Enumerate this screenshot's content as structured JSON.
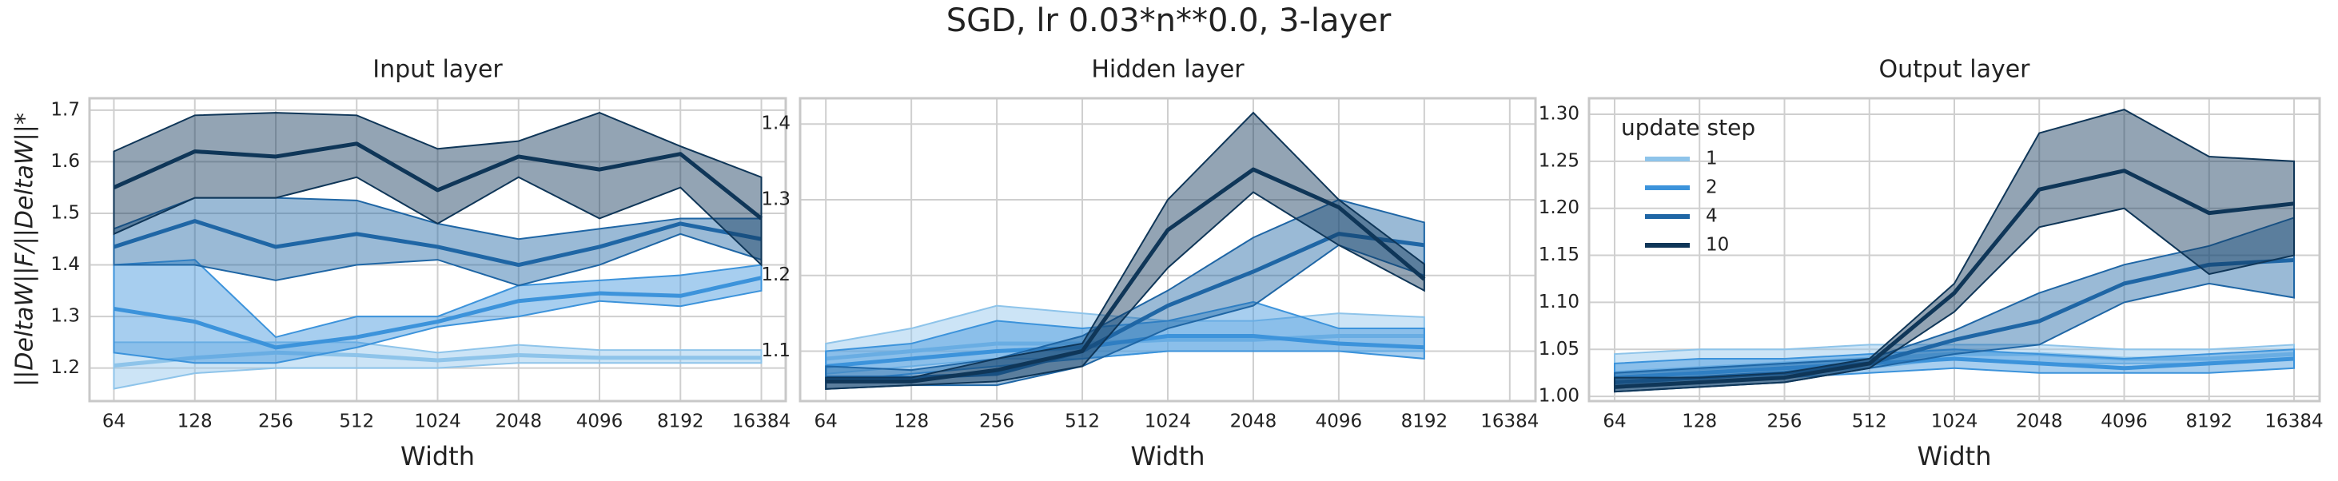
{
  "title": "SGD, lr 0.03*n**0.0, 3-layer",
  "chart_data": [
    {
      "type": "line",
      "title": "Input layer",
      "xlabel": "Width",
      "ylabel": "||DeltaW||F/||DeltaW||*",
      "categories": [
        "64",
        "128",
        "256",
        "512",
        "1024",
        "2048",
        "4096",
        "8192",
        "16384"
      ],
      "ylim": [
        1.136,
        1.723
      ],
      "yticks": [
        1.2,
        1.3,
        1.4,
        1.5,
        1.6,
        1.7
      ],
      "grid": true,
      "series": [
        {
          "name": "1",
          "color": "#8ec4ea",
          "values": [
            1.205,
            1.22,
            1.23,
            1.225,
            1.215,
            1.225,
            1.22,
            1.22,
            1.22
          ],
          "lower": [
            1.16,
            1.19,
            1.2,
            1.2,
            1.2,
            1.21,
            1.21,
            1.21,
            1.21
          ],
          "upper": [
            1.25,
            1.25,
            1.25,
            1.25,
            1.23,
            1.245,
            1.235,
            1.235,
            1.235
          ]
        },
        {
          "name": "2",
          "color": "#3c93db",
          "values": [
            1.315,
            1.29,
            1.24,
            1.26,
            1.29,
            1.33,
            1.345,
            1.34,
            1.375
          ],
          "lower": [
            1.23,
            1.21,
            1.21,
            1.24,
            1.28,
            1.3,
            1.33,
            1.32,
            1.35
          ],
          "upper": [
            1.4,
            1.41,
            1.26,
            1.3,
            1.3,
            1.36,
            1.37,
            1.38,
            1.4
          ]
        },
        {
          "name": "4",
          "color": "#1f66a5",
          "values": [
            1.435,
            1.485,
            1.435,
            1.46,
            1.435,
            1.4,
            1.435,
            1.48,
            1.45
          ],
          "lower": [
            1.4,
            1.4,
            1.37,
            1.4,
            1.41,
            1.36,
            1.4,
            1.46,
            1.41
          ],
          "upper": [
            1.47,
            1.53,
            1.53,
            1.525,
            1.48,
            1.45,
            1.47,
            1.49,
            1.49
          ]
        },
        {
          "name": "10",
          "color": "#0f3658",
          "values": [
            1.55,
            1.62,
            1.61,
            1.635,
            1.545,
            1.61,
            1.585,
            1.615,
            1.49
          ],
          "lower": [
            1.46,
            1.53,
            1.53,
            1.57,
            1.48,
            1.57,
            1.49,
            1.55,
            1.4
          ],
          "upper": [
            1.62,
            1.69,
            1.695,
            1.69,
            1.625,
            1.64,
            1.695,
            1.63,
            1.57
          ]
        }
      ]
    },
    {
      "type": "line",
      "title": "Hidden layer",
      "xlabel": "Width",
      "categories": [
        "64",
        "128",
        "256",
        "512",
        "1024",
        "2048",
        "4096",
        "8192",
        "16384"
      ],
      "ylim": [
        1.034,
        1.434
      ],
      "yticks": [
        1.1,
        1.2,
        1.3,
        1.4
      ],
      "grid": true,
      "series": [
        {
          "name": "1",
          "color": "#8ec4ea",
          "values": [
            1.09,
            1.1,
            1.11,
            1.11,
            1.115,
            1.115,
            1.12,
            1.12,
            null
          ],
          "lower": [
            1.07,
            1.08,
            1.09,
            1.09,
            1.1,
            1.1,
            1.1,
            1.1,
            null
          ],
          "upper": [
            1.11,
            1.13,
            1.16,
            1.15,
            1.14,
            1.14,
            1.15,
            1.145,
            null
          ]
        },
        {
          "name": "2",
          "color": "#3c93db",
          "values": [
            1.08,
            1.09,
            1.1,
            1.105,
            1.12,
            1.12,
            1.11,
            1.105,
            null
          ],
          "lower": [
            1.06,
            1.07,
            1.08,
            1.09,
            1.1,
            1.1,
            1.1,
            1.09,
            null
          ],
          "upper": [
            1.1,
            1.11,
            1.14,
            1.13,
            1.14,
            1.165,
            1.13,
            1.13,
            null
          ]
        },
        {
          "name": "4",
          "color": "#1f66a5",
          "values": [
            1.065,
            1.065,
            1.07,
            1.1,
            1.16,
            1.205,
            1.255,
            1.24,
            null
          ],
          "lower": [
            1.05,
            1.055,
            1.055,
            1.08,
            1.13,
            1.16,
            1.24,
            1.2,
            null
          ],
          "upper": [
            1.08,
            1.075,
            1.09,
            1.12,
            1.18,
            1.25,
            1.3,
            1.27,
            null
          ]
        },
        {
          "name": "10",
          "color": "#0f3658",
          "values": [
            1.06,
            1.06,
            1.075,
            1.1,
            1.26,
            1.34,
            1.29,
            1.195,
            null
          ],
          "lower": [
            1.05,
            1.055,
            1.06,
            1.08,
            1.21,
            1.31,
            1.24,
            1.18,
            null
          ],
          "upper": [
            1.065,
            1.065,
            1.09,
            1.11,
            1.3,
            1.415,
            1.3,
            1.215,
            null
          ]
        }
      ]
    },
    {
      "type": "line",
      "title": "Output layer",
      "xlabel": "Width",
      "categories": [
        "64",
        "128",
        "256",
        "512",
        "1024",
        "2048",
        "4096",
        "8192",
        "16384"
      ],
      "ylim": [
        0.995,
        1.317
      ],
      "yticks": [
        {
          "value": 1.0,
          "label": "1.00"
        },
        {
          "value": 1.05,
          "label": "1.05"
        },
        {
          "value": 1.1,
          "label": "1.10"
        },
        {
          "value": 1.15,
          "label": "1.15"
        },
        {
          "value": 1.2,
          "label": "1.20"
        },
        {
          "value": 1.25,
          "label": "1.25"
        },
        {
          "value": 1.3,
          "label": "1.30"
        }
      ],
      "grid": true,
      "legend": "upper left",
      "legend_title": "update step",
      "series": [
        {
          "name": "1",
          "color": "#8ec4ea",
          "values": [
            1.025,
            1.03,
            1.035,
            1.04,
            1.045,
            1.045,
            1.04,
            1.04,
            1.045
          ],
          "lower": [
            1.01,
            1.02,
            1.025,
            1.03,
            1.04,
            1.035,
            1.035,
            1.035,
            1.04
          ],
          "upper": [
            1.045,
            1.05,
            1.05,
            1.055,
            1.055,
            1.055,
            1.05,
            1.05,
            1.055
          ]
        },
        {
          "name": "2",
          "color": "#3c93db",
          "values": [
            1.02,
            1.025,
            1.03,
            1.035,
            1.04,
            1.035,
            1.03,
            1.035,
            1.04
          ],
          "lower": [
            1.01,
            1.015,
            1.02,
            1.025,
            1.03,
            1.025,
            1.025,
            1.025,
            1.03
          ],
          "upper": [
            1.035,
            1.04,
            1.04,
            1.045,
            1.05,
            1.045,
            1.04,
            1.045,
            1.05
          ]
        },
        {
          "name": "4",
          "color": "#1f66a5",
          "values": [
            1.015,
            1.02,
            1.025,
            1.035,
            1.06,
            1.08,
            1.12,
            1.14,
            1.145
          ],
          "lower": [
            1.005,
            1.01,
            1.015,
            1.03,
            1.045,
            1.055,
            1.1,
            1.12,
            1.105
          ],
          "upper": [
            1.025,
            1.03,
            1.035,
            1.04,
            1.07,
            1.11,
            1.14,
            1.16,
            1.19
          ]
        },
        {
          "name": "10",
          "color": "#0f3658",
          "values": [
            1.01,
            1.015,
            1.02,
            1.035,
            1.11,
            1.22,
            1.24,
            1.195,
            1.205
          ],
          "lower": [
            1.005,
            1.01,
            1.015,
            1.03,
            1.09,
            1.18,
            1.2,
            1.13,
            1.15
          ],
          "upper": [
            1.02,
            1.02,
            1.025,
            1.04,
            1.12,
            1.28,
            1.305,
            1.255,
            1.25
          ]
        }
      ]
    }
  ]
}
